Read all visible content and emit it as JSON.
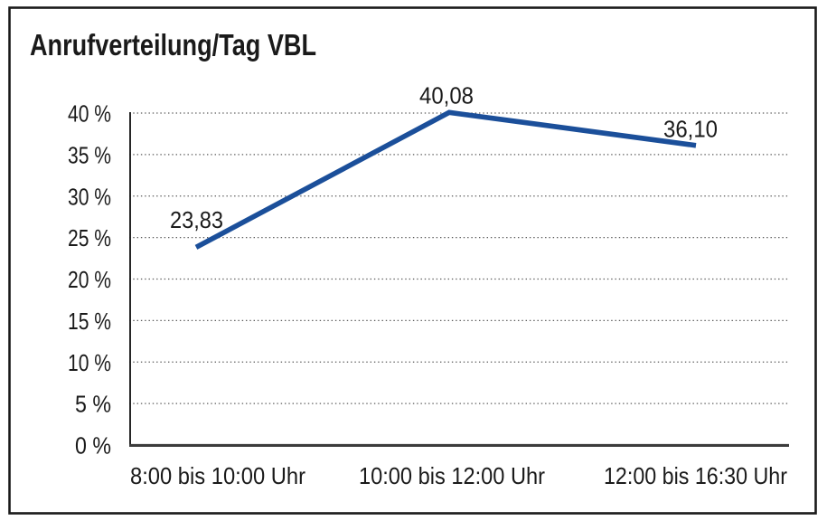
{
  "chart_data": {
    "type": "line",
    "title": "Anrufverteilung/Tag VBL",
    "categories": [
      "8:00 bis 10:00 Uhr",
      "10:00 bis 12:00 Uhr",
      "12:00 bis 16:30 Uhr"
    ],
    "values": [
      23.83,
      40.08,
      36.1
    ],
    "value_labels": [
      "23,83",
      "40,08",
      "36,10"
    ],
    "y_ticks": [
      "40 %",
      "35 %",
      "30 %",
      "25 %",
      "20 %",
      "15 %",
      "10 %",
      "5 %",
      "0 %"
    ],
    "ylim": [
      0,
      40
    ],
    "y_tick_step": 5,
    "xlabel": "",
    "ylabel": "",
    "grid": "horizontal-dotted",
    "legend": "none",
    "line_color": "#1B4F9A",
    "text_color": "#1a1a1a",
    "background_color": "#ffffff"
  }
}
